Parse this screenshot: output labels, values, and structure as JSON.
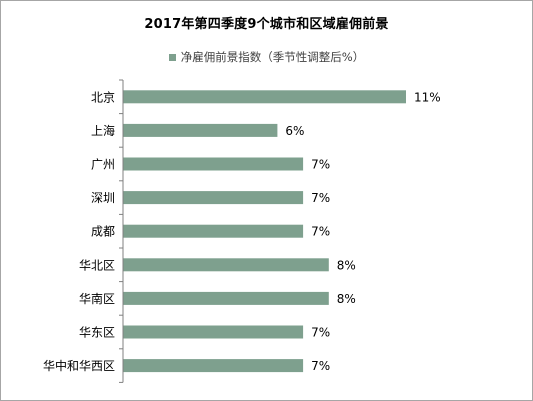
{
  "chart_data": {
    "type": "bar",
    "orientation": "horizontal",
    "title": "2017年第四季度9个城市和区域雇佣前景",
    "legend": {
      "position": "top",
      "entries": [
        "净雇佣前景指数（季节性调整后%）"
      ]
    },
    "categories": [
      "北京",
      "上海",
      "广州",
      "深圳",
      "成都",
      "华北区",
      "华南区",
      "华东区",
      "华中和华西区"
    ],
    "series": [
      {
        "name": "净雇佣前景指数（季节性调整后%）",
        "values": [
          11,
          6,
          7,
          7,
          7,
          8,
          8,
          7,
          7
        ],
        "labels": [
          "11%",
          "6%",
          "7%",
          "7%",
          "7%",
          "8%",
          "8%",
          "7%",
          "7%"
        ],
        "color": "#7ea08e"
      }
    ],
    "xlim": [
      0,
      11
    ],
    "grid": false
  }
}
